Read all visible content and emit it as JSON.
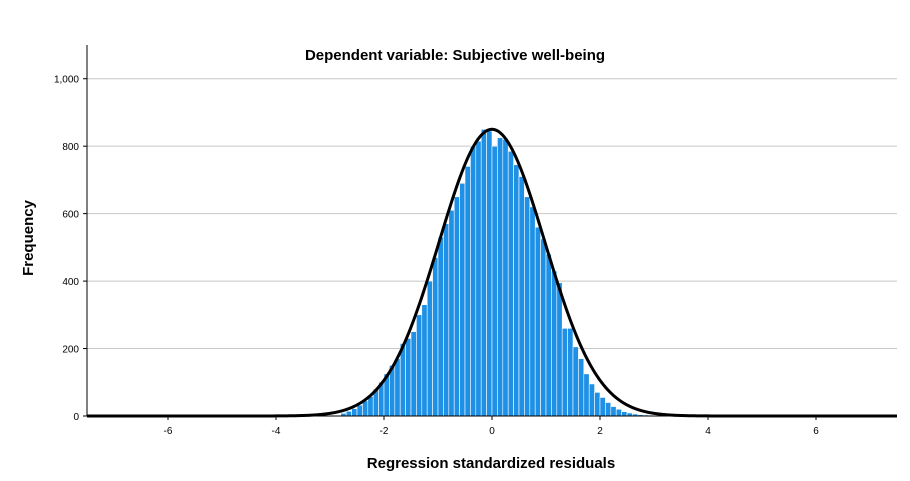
{
  "chart_data": {
    "type": "bar",
    "subtype": "histogram",
    "title": "Dependent variable: Subjective well-being",
    "xlabel": "Regression standardized residuals",
    "ylabel": "Frequency",
    "xlim": [
      -7.5,
      7.5
    ],
    "ylim": [
      0,
      1100
    ],
    "x_ticks": [
      -6,
      -4,
      -2,
      0,
      2,
      4,
      6
    ],
    "y_ticks": [
      0,
      200,
      400,
      600,
      800,
      1000
    ],
    "y_tick_labels": [
      "0",
      "200",
      "400",
      "600",
      "800",
      "1,000"
    ],
    "grid": "horizontal",
    "bar_color": "#1e90e6",
    "bar_edge_color": "#ffffff",
    "curve_color": "#000000",
    "bins": [
      {
        "x0": -2.8,
        "x1": -2.7,
        "count": 8
      },
      {
        "x0": -2.7,
        "x1": -2.6,
        "count": 14
      },
      {
        "x0": -2.6,
        "x1": -2.5,
        "count": 22
      },
      {
        "x0": -2.5,
        "x1": -2.4,
        "count": 32
      },
      {
        "x0": -2.4,
        "x1": -2.3,
        "count": 45
      },
      {
        "x0": -2.3,
        "x1": -2.2,
        "count": 58
      },
      {
        "x0": -2.2,
        "x1": -2.1,
        "count": 80
      },
      {
        "x0": -2.1,
        "x1": -2.0,
        "count": 100
      },
      {
        "x0": -2.0,
        "x1": -1.9,
        "count": 125
      },
      {
        "x0": -1.9,
        "x1": -1.8,
        "count": 150
      },
      {
        "x0": -1.8,
        "x1": -1.7,
        "count": 170
      },
      {
        "x0": -1.7,
        "x1": -1.6,
        "count": 215
      },
      {
        "x0": -1.6,
        "x1": -1.5,
        "count": 230
      },
      {
        "x0": -1.5,
        "x1": -1.4,
        "count": 250
      },
      {
        "x0": -1.4,
        "x1": -1.3,
        "count": 300
      },
      {
        "x0": -1.3,
        "x1": -1.2,
        "count": 330
      },
      {
        "x0": -1.2,
        "x1": -1.1,
        "count": 400
      },
      {
        "x0": -1.1,
        "x1": -1.0,
        "count": 470
      },
      {
        "x0": -1.0,
        "x1": -0.9,
        "count": 530
      },
      {
        "x0": -0.9,
        "x1": -0.8,
        "count": 570
      },
      {
        "x0": -0.8,
        "x1": -0.7,
        "count": 610
      },
      {
        "x0": -0.7,
        "x1": -0.6,
        "count": 650
      },
      {
        "x0": -0.6,
        "x1": -0.5,
        "count": 690
      },
      {
        "x0": -0.5,
        "x1": -0.4,
        "count": 740
      },
      {
        "x0": -0.4,
        "x1": -0.3,
        "count": 800
      },
      {
        "x0": -0.3,
        "x1": -0.2,
        "count": 815
      },
      {
        "x0": -0.2,
        "x1": -0.1,
        "count": 850
      },
      {
        "x0": -0.1,
        "x1": 0.0,
        "count": 845
      },
      {
        "x0": 0.0,
        "x1": 0.1,
        "count": 800
      },
      {
        "x0": 0.1,
        "x1": 0.2,
        "count": 825
      },
      {
        "x0": 0.2,
        "x1": 0.3,
        "count": 820
      },
      {
        "x0": 0.3,
        "x1": 0.4,
        "count": 785
      },
      {
        "x0": 0.4,
        "x1": 0.5,
        "count": 745
      },
      {
        "x0": 0.5,
        "x1": 0.6,
        "count": 710
      },
      {
        "x0": 0.6,
        "x1": 0.7,
        "count": 650
      },
      {
        "x0": 0.7,
        "x1": 0.8,
        "count": 620
      },
      {
        "x0": 0.8,
        "x1": 0.9,
        "count": 560
      },
      {
        "x0": 0.9,
        "x1": 1.0,
        "count": 525
      },
      {
        "x0": 1.0,
        "x1": 1.1,
        "count": 480
      },
      {
        "x0": 1.1,
        "x1": 1.2,
        "count": 430
      },
      {
        "x0": 1.2,
        "x1": 1.3,
        "count": 395
      },
      {
        "x0": 1.3,
        "x1": 1.4,
        "count": 260
      },
      {
        "x0": 1.4,
        "x1": 1.5,
        "count": 260
      },
      {
        "x0": 1.5,
        "x1": 1.6,
        "count": 205
      },
      {
        "x0": 1.6,
        "x1": 1.7,
        "count": 170
      },
      {
        "x0": 1.7,
        "x1": 1.8,
        "count": 125
      },
      {
        "x0": 1.8,
        "x1": 1.9,
        "count": 95
      },
      {
        "x0": 1.9,
        "x1": 2.0,
        "count": 70
      },
      {
        "x0": 2.0,
        "x1": 2.1,
        "count": 55
      },
      {
        "x0": 2.1,
        "x1": 2.2,
        "count": 40
      },
      {
        "x0": 2.2,
        "x1": 2.3,
        "count": 28
      },
      {
        "x0": 2.3,
        "x1": 2.4,
        "count": 20
      },
      {
        "x0": 2.4,
        "x1": 2.5,
        "count": 13
      },
      {
        "x0": 2.5,
        "x1": 2.6,
        "count": 9
      },
      {
        "x0": 2.6,
        "x1": 2.7,
        "count": 6
      },
      {
        "x0": 2.7,
        "x1": 2.8,
        "count": 4
      },
      {
        "x0": 2.8,
        "x1": 2.9,
        "count": 3
      },
      {
        "x0": 2.9,
        "x1": 3.0,
        "count": 2
      }
    ],
    "normal_curve": {
      "mean": 0.0,
      "sd": 0.98,
      "peak": 850
    }
  }
}
